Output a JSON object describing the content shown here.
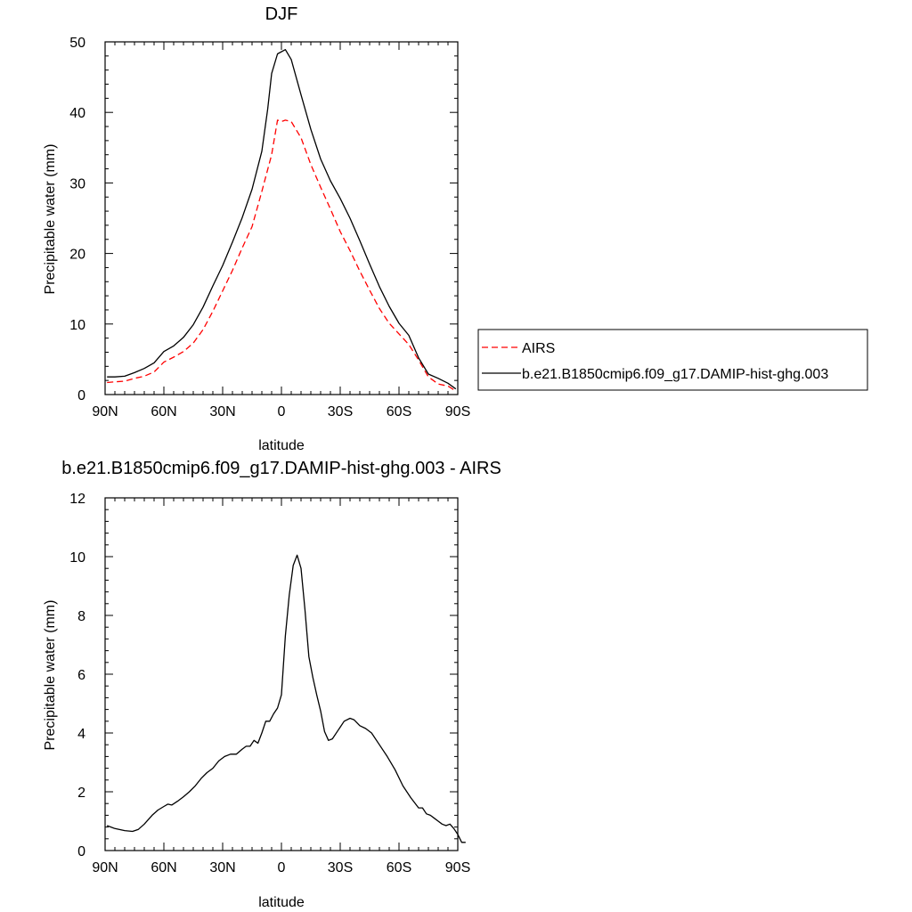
{
  "chart_data": [
    {
      "type": "line",
      "title": "DJF",
      "xlabel": "latitude",
      "ylabel": "Precipitable water (mm)",
      "xlim": [
        90,
        -90
      ],
      "ylim": [
        0,
        50
      ],
      "xticks": [
        90,
        60,
        30,
        0,
        -30,
        -60,
        -90
      ],
      "xtick_labels": [
        "90N",
        "60N",
        "30N",
        "0",
        "30S",
        "60S",
        "90S"
      ],
      "yticks": [
        0,
        10,
        20,
        30,
        40,
        50
      ],
      "ytick_labels": [
        "0",
        "10",
        "20",
        "30",
        "40",
        "50"
      ],
      "grid": false,
      "legend_position": "right",
      "series": [
        {
          "name": "AIRS",
          "color": "#ff0000",
          "dash": "dashed",
          "points": [
            [
              89,
              1.7
            ],
            [
              85,
              1.8
            ],
            [
              80,
              1.9
            ],
            [
              75,
              2.3
            ],
            [
              70,
              2.6
            ],
            [
              65,
              3.2
            ],
            [
              60,
              4.6
            ],
            [
              55,
              5.3
            ],
            [
              50,
              6.1
            ],
            [
              45,
              7.3
            ],
            [
              40,
              9.2
            ],
            [
              35,
              11.8
            ],
            [
              30,
              14.7
            ],
            [
              25,
              17.6
            ],
            [
              20,
              20.8
            ],
            [
              15,
              23.8
            ],
            [
              10,
              28.8
            ],
            [
              5,
              34.0
            ],
            [
              2,
              38.9
            ],
            [
              0,
              38.7
            ],
            [
              -2,
              38.9
            ],
            [
              -5,
              38.7
            ],
            [
              -10,
              36.4
            ],
            [
              -15,
              32.6
            ],
            [
              -20,
              29.4
            ],
            [
              -25,
              26.3
            ],
            [
              -30,
              23.1
            ],
            [
              -35,
              20.4
            ],
            [
              -40,
              17.5
            ],
            [
              -45,
              14.8
            ],
            [
              -50,
              12.2
            ],
            [
              -55,
              10.1
            ],
            [
              -60,
              8.6
            ],
            [
              -65,
              7.1
            ],
            [
              -70,
              4.9
            ],
            [
              -75,
              2.5
            ],
            [
              -80,
              1.5
            ],
            [
              -85,
              1.2
            ],
            [
              -89,
              0.5
            ]
          ]
        },
        {
          "name": "b.e21.B1850cmip6.f09_g17.DAMIP-hist-ghg.003",
          "color": "#000000",
          "dash": "solid",
          "points": [
            [
              89,
              2.5
            ],
            [
              85,
              2.5
            ],
            [
              80,
              2.6
            ],
            [
              75,
              3.1
            ],
            [
              70,
              3.7
            ],
            [
              65,
              4.5
            ],
            [
              60,
              6.1
            ],
            [
              55,
              6.9
            ],
            [
              50,
              8.1
            ],
            [
              45,
              9.9
            ],
            [
              40,
              12.4
            ],
            [
              35,
              15.4
            ],
            [
              30,
              18.3
            ],
            [
              25,
              21.6
            ],
            [
              20,
              25.1
            ],
            [
              15,
              29.1
            ],
            [
              10,
              34.5
            ],
            [
              7,
              40.5
            ],
            [
              5,
              45.5
            ],
            [
              2,
              48.3
            ],
            [
              -2,
              48.9
            ],
            [
              -5,
              47.5
            ],
            [
              -10,
              42.5
            ],
            [
              -15,
              37.6
            ],
            [
              -20,
              33.4
            ],
            [
              -25,
              30.3
            ],
            [
              -30,
              27.8
            ],
            [
              -35,
              25.0
            ],
            [
              -40,
              21.8
            ],
            [
              -45,
              18.5
            ],
            [
              -50,
              15.3
            ],
            [
              -55,
              12.5
            ],
            [
              -60,
              10.1
            ],
            [
              -65,
              8.4
            ],
            [
              -70,
              5.2
            ],
            [
              -75,
              2.9
            ],
            [
              -80,
              2.3
            ],
            [
              -85,
              1.6
            ],
            [
              -89,
              0.8
            ]
          ]
        }
      ]
    },
    {
      "type": "line",
      "title": "b.e21.B1850cmip6.f09_g17.DAMIP-hist-ghg.003 - AIRS",
      "xlabel": "latitude",
      "ylabel": "Precipitable water (mm)",
      "xlim": [
        90,
        -90
      ],
      "ylim": [
        0,
        12
      ],
      "xticks": [
        90,
        60,
        30,
        0,
        -30,
        -60,
        -90
      ],
      "xtick_labels": [
        "90N",
        "60N",
        "30N",
        "0",
        "30S",
        "60S",
        "90S"
      ],
      "yticks": [
        0,
        2,
        4,
        6,
        8,
        10,
        12
      ],
      "ytick_labels": [
        "0",
        "2",
        "4",
        "6",
        "8",
        "10",
        "12"
      ],
      "grid": false,
      "series": [
        {
          "color": "#000000",
          "dash": "solid",
          "points": [
            [
              89,
              0.85
            ],
            [
              85,
              0.75
            ],
            [
              80,
              0.68
            ],
            [
              76,
              0.65
            ],
            [
              73,
              0.72
            ],
            [
              70,
              0.9
            ],
            [
              66,
              1.2
            ],
            [
              63,
              1.38
            ],
            [
              60,
              1.5
            ],
            [
              58,
              1.58
            ],
            [
              56,
              1.55
            ],
            [
              53,
              1.68
            ],
            [
              50,
              1.83
            ],
            [
              47,
              2.0
            ],
            [
              44,
              2.2
            ],
            [
              41,
              2.45
            ],
            [
              38,
              2.65
            ],
            [
              35,
              2.8
            ],
            [
              32,
              3.05
            ],
            [
              29,
              3.2
            ],
            [
              26,
              3.28
            ],
            [
              23,
              3.28
            ],
            [
              20,
              3.45
            ],
            [
              18,
              3.55
            ],
            [
              16,
              3.55
            ],
            [
              14,
              3.75
            ],
            [
              12,
              3.65
            ],
            [
              10,
              4.0
            ],
            [
              8,
              4.4
            ],
            [
              6,
              4.4
            ],
            [
              4,
              4.65
            ],
            [
              2,
              4.85
            ],
            [
              0,
              5.3
            ],
            [
              -2,
              7.3
            ],
            [
              -4,
              8.7
            ],
            [
              -6,
              9.7
            ],
            [
              -8,
              10.05
            ],
            [
              -10,
              9.6
            ],
            [
              -12,
              8.2
            ],
            [
              -14,
              6.6
            ],
            [
              -16,
              5.9
            ],
            [
              -18,
              5.3
            ],
            [
              -20,
              4.75
            ],
            [
              -22,
              4.05
            ],
            [
              -24,
              3.75
            ],
            [
              -26,
              3.8
            ],
            [
              -29,
              4.1
            ],
            [
              -32,
              4.4
            ],
            [
              -35,
              4.5
            ],
            [
              -37,
              4.45
            ],
            [
              -40,
              4.25
            ],
            [
              -43,
              4.15
            ],
            [
              -46,
              4.0
            ],
            [
              -50,
              3.6
            ],
            [
              -54,
              3.2
            ],
            [
              -58,
              2.75
            ],
            [
              -62,
              2.2
            ],
            [
              -66,
              1.8
            ],
            [
              -70,
              1.45
            ],
            [
              -72,
              1.45
            ],
            [
              -74,
              1.25
            ],
            [
              -76,
              1.2
            ],
            [
              -78,
              1.1
            ],
            [
              -80,
              1.0
            ],
            [
              -82,
              0.9
            ],
            [
              -84,
              0.85
            ],
            [
              -86,
              0.9
            ],
            [
              -88,
              0.75
            ],
            [
              -90,
              0.55
            ],
            [
              -92,
              0.28
            ],
            [
              -94,
              0.28
            ]
          ]
        }
      ]
    }
  ]
}
